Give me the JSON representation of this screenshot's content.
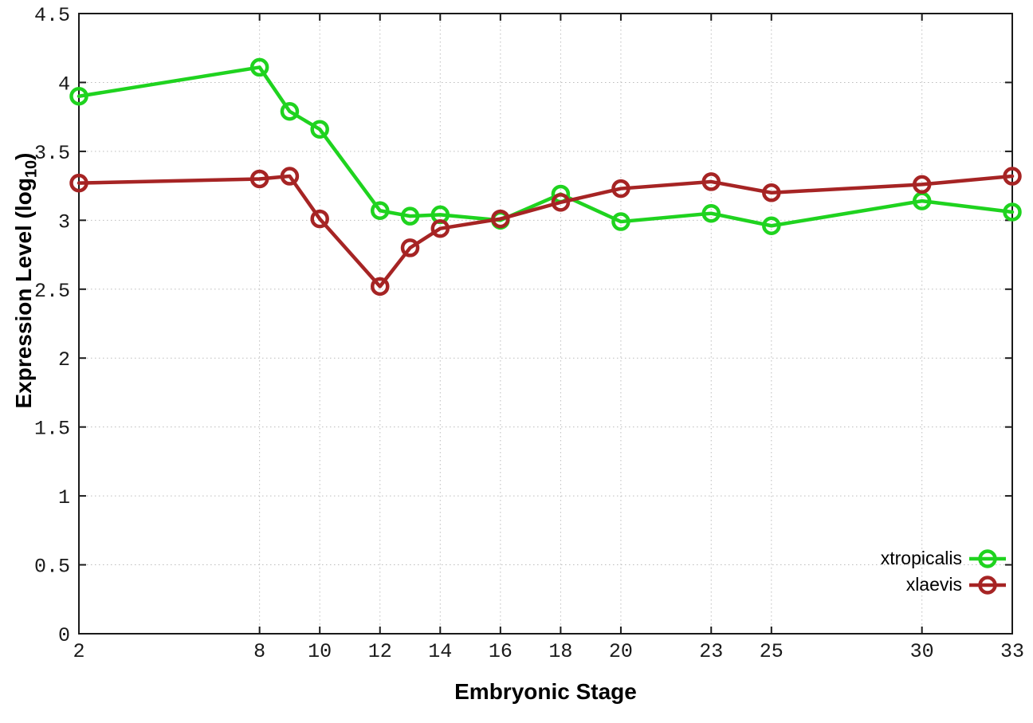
{
  "chart_data": {
    "type": "line",
    "title": "",
    "xlabel": "Embryonic Stage",
    "ylabel": "Expression Level (log10)",
    "ylabel_parts": {
      "main": "Expression Level (log",
      "sub": "10",
      "end": ")"
    },
    "x": [
      2,
      8,
      9,
      10,
      12,
      13,
      14,
      16,
      18,
      20,
      23,
      25,
      30,
      33
    ],
    "xticks": [
      "2",
      "8",
      "10",
      "12",
      "14",
      "16",
      "18",
      "20",
      "23",
      "25",
      "30",
      "33"
    ],
    "yticks": [
      "0",
      "0.5",
      "1",
      "1.5",
      "2",
      "2.5",
      "3",
      "3.5",
      "4",
      "4.5"
    ],
    "xlim": [
      2,
      33
    ],
    "ylim": [
      0,
      4.5
    ],
    "grid": true,
    "legend_position": "inside-bottom-right",
    "marker": "open-circle",
    "series": [
      {
        "name": "xtropicalis",
        "color": "#1fd31f",
        "values": [
          3.9,
          4.11,
          3.79,
          3.66,
          3.07,
          3.03,
          3.04,
          3.0,
          3.19,
          2.99,
          3.05,
          2.96,
          3.14,
          3.06
        ]
      },
      {
        "name": "xlaevis",
        "color": "#a62424",
        "values": [
          3.27,
          3.3,
          3.32,
          3.01,
          2.52,
          2.8,
          2.94,
          3.01,
          3.13,
          3.23,
          3.28,
          3.2,
          3.26,
          3.32
        ]
      }
    ],
    "colors": {
      "axis": "#1a1a1a",
      "grid": "#bcbcbc",
      "tick_label": "#1a1a1a",
      "background": "#ffffff"
    }
  }
}
